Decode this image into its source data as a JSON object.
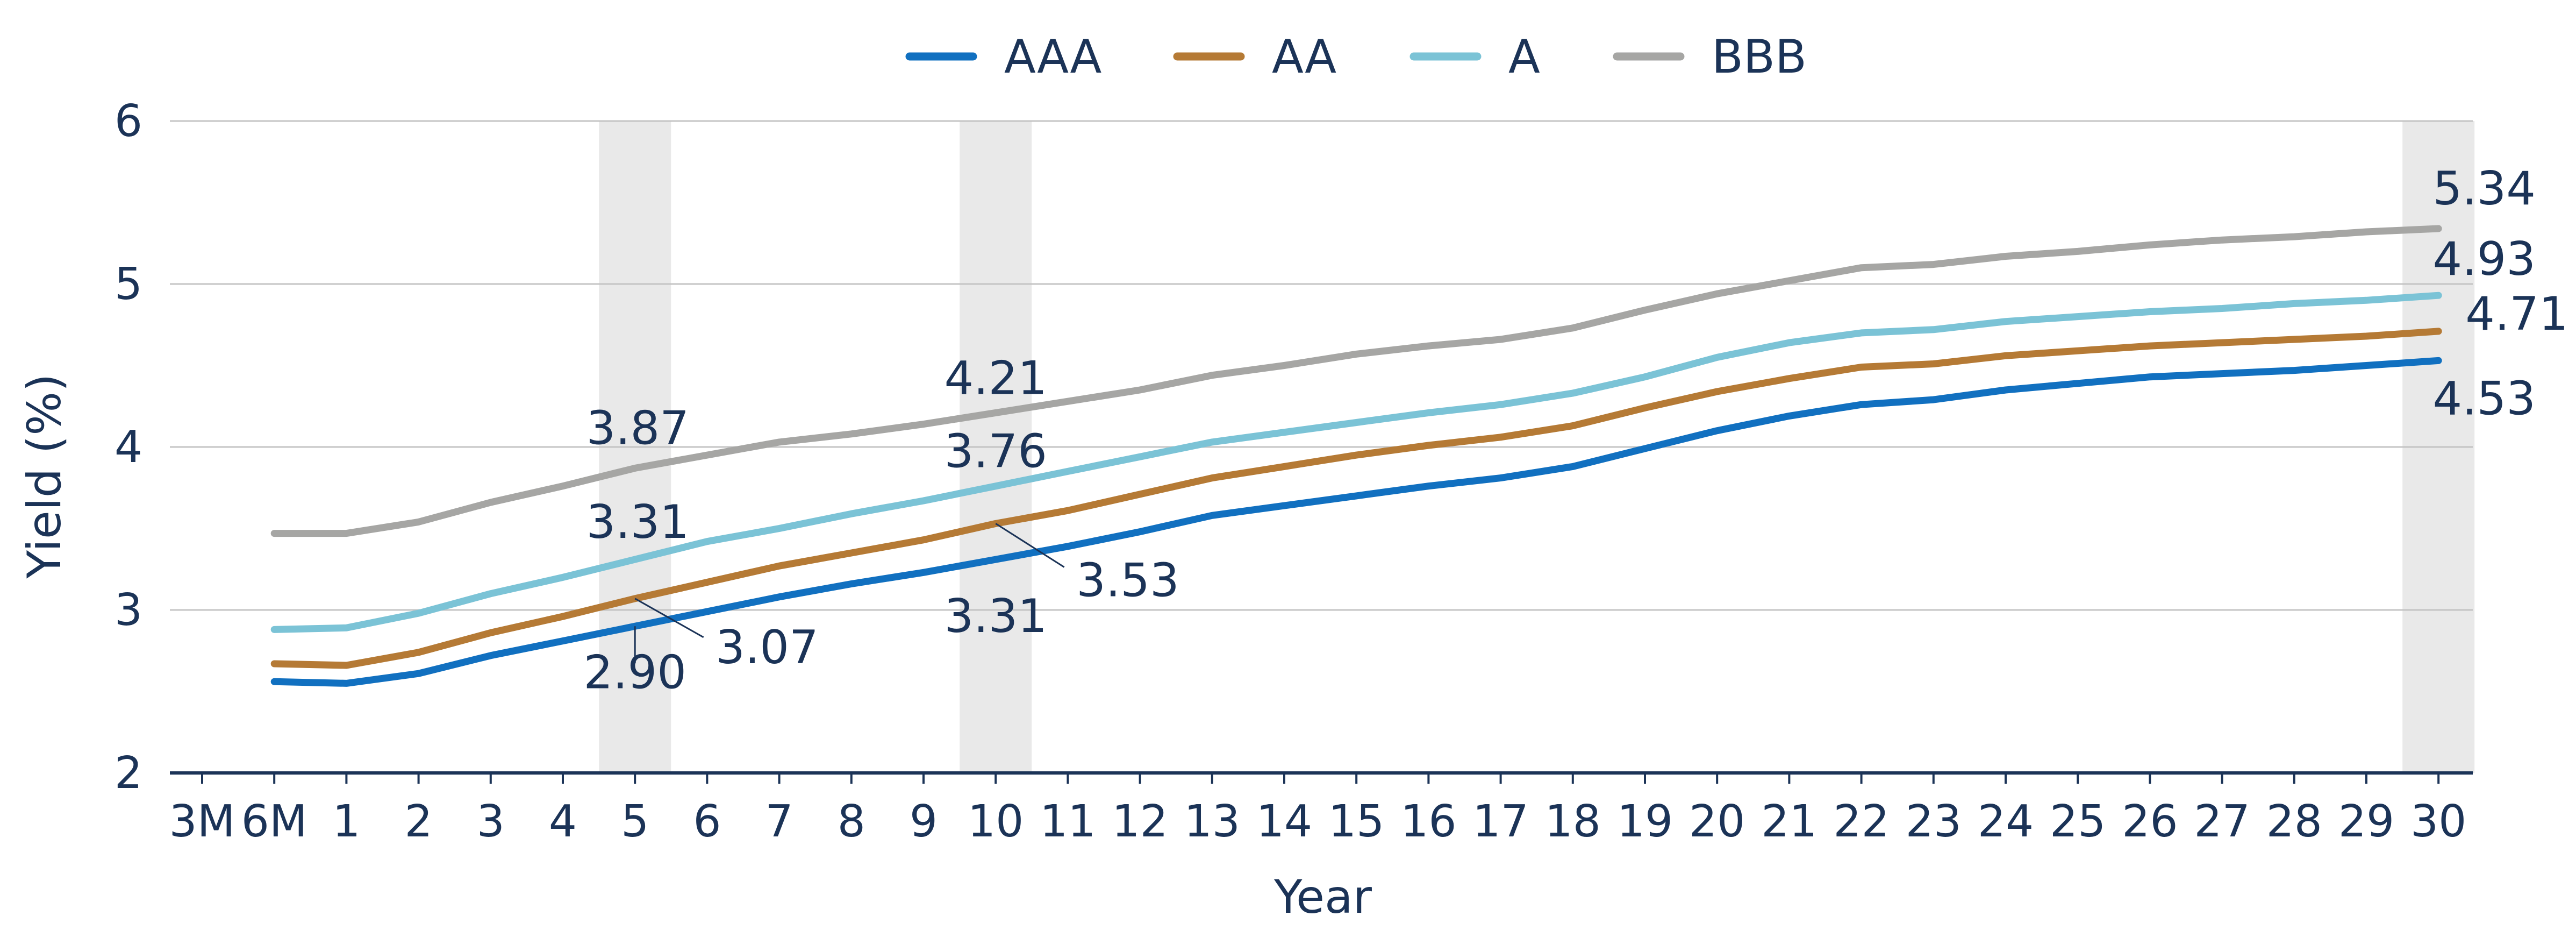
{
  "chart_data": {
    "type": "line",
    "categories": [
      "3M",
      "6M",
      "1",
      "2",
      "3",
      "4",
      "5",
      "6",
      "7",
      "8",
      "9",
      "10",
      "11",
      "12",
      "13",
      "14",
      "15",
      "16",
      "17",
      "18",
      "19",
      "20",
      "21",
      "22",
      "23",
      "24",
      "25",
      "26",
      "27",
      "28",
      "29",
      "30"
    ],
    "xlabel": "Year",
    "ylabel": "Yield (%)",
    "ylim": [
      2,
      6
    ],
    "yticks": [
      2,
      3,
      4,
      5,
      6
    ],
    "grid": "horizontal",
    "legend_position": "top-center",
    "highlighted_categories": [
      "5",
      "10",
      "30"
    ],
    "series": [
      {
        "name": "AAA",
        "color": "#1170c0",
        "values": [
          null,
          2.56,
          2.55,
          2.61,
          2.72,
          2.81,
          2.9,
          2.99,
          3.08,
          3.16,
          3.23,
          3.31,
          3.39,
          3.48,
          3.58,
          3.64,
          3.7,
          3.76,
          3.81,
          3.88,
          3.99,
          4.1,
          4.19,
          4.26,
          4.29,
          4.35,
          4.39,
          4.43,
          4.45,
          4.47,
          4.5,
          4.53
        ]
      },
      {
        "name": "AA",
        "color": "#b57a35",
        "values": [
          null,
          2.67,
          2.66,
          2.74,
          2.86,
          2.96,
          3.07,
          3.17,
          3.27,
          3.35,
          3.43,
          3.53,
          3.61,
          3.71,
          3.81,
          3.88,
          3.95,
          4.01,
          4.06,
          4.13,
          4.24,
          4.34,
          4.42,
          4.49,
          4.51,
          4.56,
          4.59,
          4.62,
          4.64,
          4.66,
          4.68,
          4.71
        ]
      },
      {
        "name": "A",
        "color": "#7bc3d6",
        "values": [
          null,
          2.88,
          2.89,
          2.98,
          3.1,
          3.2,
          3.31,
          3.42,
          3.5,
          3.59,
          3.67,
          3.76,
          3.85,
          3.94,
          4.03,
          4.09,
          4.15,
          4.21,
          4.26,
          4.33,
          4.43,
          4.55,
          4.64,
          4.7,
          4.72,
          4.77,
          4.8,
          4.83,
          4.85,
          4.88,
          4.9,
          4.93
        ]
      },
      {
        "name": "BBB",
        "color": "#a6a6a4",
        "values": [
          null,
          3.47,
          3.47,
          3.54,
          3.66,
          3.76,
          3.87,
          3.95,
          4.03,
          4.08,
          4.14,
          4.21,
          4.28,
          4.35,
          4.44,
          4.5,
          4.57,
          4.62,
          4.66,
          4.73,
          4.84,
          4.94,
          5.02,
          5.1,
          5.12,
          5.17,
          5.2,
          5.24,
          5.27,
          5.29,
          5.32,
          5.34
        ]
      }
    ],
    "annotations": [
      {
        "series": "AAA",
        "category": "5",
        "text": "2.90"
      },
      {
        "series": "AA",
        "category": "5",
        "text": "3.07"
      },
      {
        "series": "A",
        "category": "5",
        "text": "3.31"
      },
      {
        "series": "BBB",
        "category": "5",
        "text": "3.87"
      },
      {
        "series": "AAA",
        "category": "10",
        "text": "3.31"
      },
      {
        "series": "AA",
        "category": "10",
        "text": "3.53"
      },
      {
        "series": "A",
        "category": "10",
        "text": "3.76"
      },
      {
        "series": "BBB",
        "category": "10",
        "text": "4.21"
      },
      {
        "series": "AAA",
        "category": "30",
        "text": "4.53"
      },
      {
        "series": "AA",
        "category": "30",
        "text": "4.71"
      },
      {
        "series": "A",
        "category": "30",
        "text": "4.93"
      },
      {
        "series": "BBB",
        "category": "30",
        "text": "5.34"
      }
    ]
  }
}
